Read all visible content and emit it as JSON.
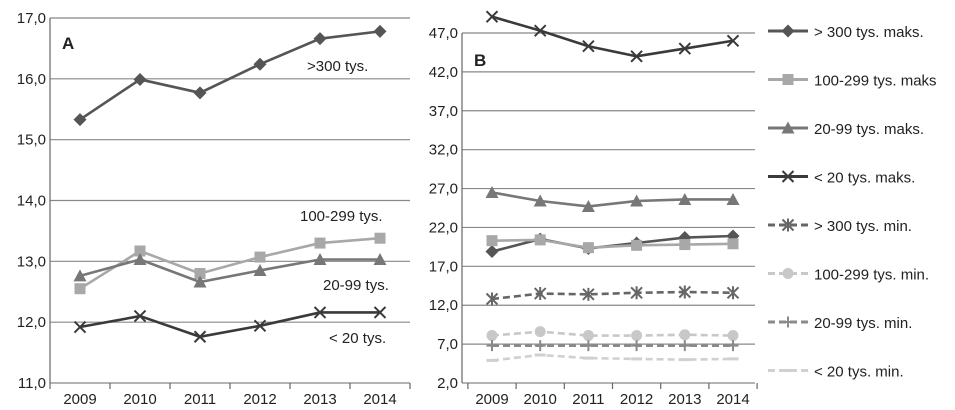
{
  "chart_data": [
    {
      "type": "line",
      "panel_label": "A",
      "categories": [
        "2009",
        "2010",
        "2011",
        "2012",
        "2013",
        "2014"
      ],
      "ylim": [
        11.0,
        17.0
      ],
      "yticks": [
        "11,0",
        "12,0",
        "13,0",
        "14,0",
        "15,0",
        "16,0",
        "17,0"
      ],
      "grid": true,
      "series": [
        {
          "name": ">300 tys.",
          "values": [
            15.33,
            15.99,
            15.77,
            16.24,
            16.66,
            16.78
          ],
          "color": "#555555",
          "marker": "diamond",
          "dash": false
        },
        {
          "name": "100-299 tys.",
          "values": [
            12.55,
            13.17,
            12.8,
            13.07,
            13.3,
            13.38
          ],
          "color": "#a8a8a8",
          "marker": "square",
          "dash": false
        },
        {
          "name": "20-99 tys.",
          "values": [
            12.76,
            13.03,
            12.66,
            12.85,
            13.03,
            13.03
          ],
          "color": "#777777",
          "marker": "triangle",
          "dash": false
        },
        {
          "name": "< 20 tys.",
          "values": [
            11.92,
            12.1,
            11.76,
            11.94,
            12.16,
            12.16
          ],
          "color": "#3a3a3a",
          "marker": "x",
          "dash": false
        }
      ]
    },
    {
      "type": "line",
      "panel_label": "B",
      "categories": [
        "2009",
        "2010",
        "2011",
        "2012",
        "2013",
        "2014"
      ],
      "ylim": [
        2.0,
        47.0
      ],
      "yticks": [
        "2,0",
        "7,0",
        "12,0",
        "17,0",
        "22,0",
        "27,0",
        "32,0",
        "37,0",
        "42,0",
        "47,0"
      ],
      "grid": true,
      "series": [
        {
          "name": "> 300 tys. maks.",
          "values": [
            18.9,
            20.5,
            19.3,
            20.0,
            20.7,
            20.9
          ],
          "color": "#555555",
          "marker": "diamond",
          "dash": false
        },
        {
          "name": "100-299 tys. maks",
          "values": [
            20.3,
            20.4,
            19.4,
            19.7,
            19.8,
            19.9
          ],
          "color": "#a8a8a8",
          "marker": "square",
          "dash": false
        },
        {
          "name": "20-99 tys. maks.",
          "values": [
            26.5,
            25.4,
            24.7,
            25.4,
            25.6,
            25.6
          ],
          "color": "#777777",
          "marker": "triangle",
          "dash": false
        },
        {
          "name": "< 20 tys. maks.",
          "values": [
            49.1,
            47.3,
            45.3,
            44.0,
            45.0,
            46.0
          ],
          "color": "#3a3a3a",
          "marker": "x",
          "dash": false
        },
        {
          "name": "> 300 tys. min.",
          "values": [
            12.8,
            13.5,
            13.4,
            13.6,
            13.7,
            13.6
          ],
          "color": "#666666",
          "marker": "asterisk",
          "dash": true
        },
        {
          "name": "100-299 tys. min.",
          "values": [
            8.1,
            8.6,
            8.1,
            8.1,
            8.2,
            8.1
          ],
          "color": "#c8c8c8",
          "marker": "circle",
          "dash": true
        },
        {
          "name": "20-99 tys. min.",
          "values": [
            6.8,
            6.8,
            6.8,
            6.8,
            6.8,
            6.8
          ],
          "color": "#8a8a8a",
          "marker": "plus",
          "dash": true
        },
        {
          "name": "< 20 tys. min.",
          "values": [
            4.9,
            5.6,
            5.2,
            5.1,
            5.0,
            5.1
          ],
          "color": "#d0d0d0",
          "marker": "dash",
          "dash": true
        }
      ],
      "legend": "right"
    }
  ]
}
